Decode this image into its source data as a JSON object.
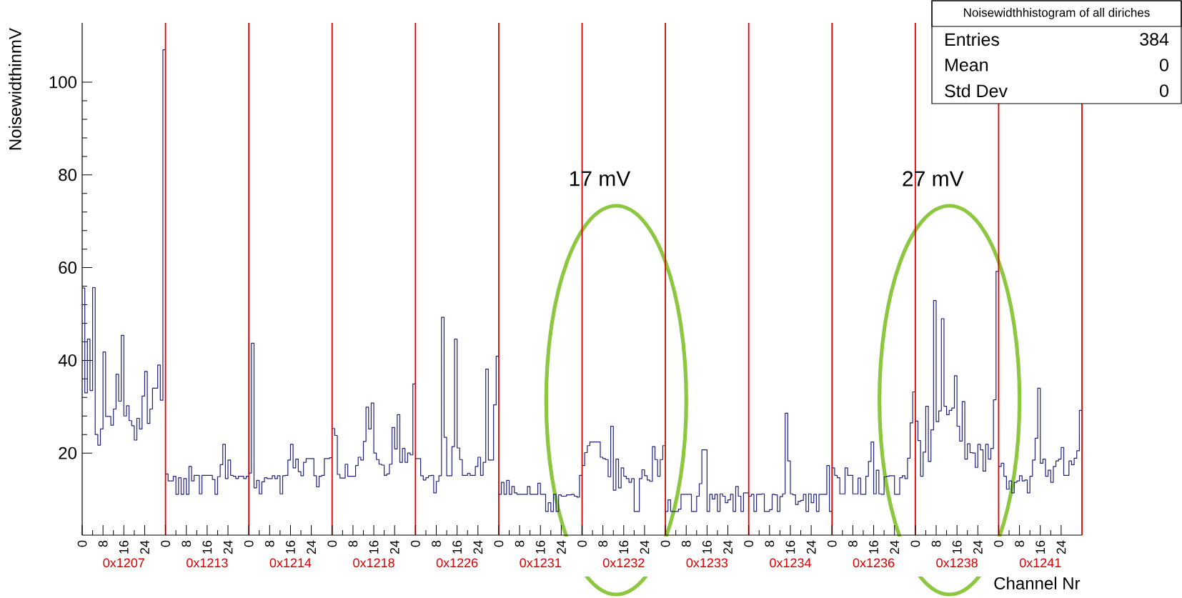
{
  "chart_data": [
    {
      "type": "histogram",
      "xlabel": "0x1207",
      "ylabel": "NoisewidthinmV",
      "color": "#202080",
      "bins": [
        0,
        1,
        2,
        3,
        4,
        5,
        6,
        7,
        8,
        9,
        10,
        11,
        12,
        13,
        14,
        15,
        16,
        17,
        18,
        19,
        20,
        21,
        22,
        23,
        24,
        25,
        26,
        27,
        28,
        29,
        30,
        31,
        32
      ],
      "values": [
        55.6,
        33,
        44.6,
        33.5,
        55.7,
        24,
        21.7,
        25.2,
        41.8,
        27.9,
        27.9,
        26,
        29.5,
        37,
        31.2,
        45.4,
        28,
        30.2,
        27,
        25.9,
        22.8,
        27.5,
        25.2,
        32.3,
        37.6,
        26.4,
        29.5,
        34,
        34,
        39,
        31.4,
        107
      ],
      "xlim": [
        0,
        32
      ],
      "xticks": [
        0,
        8,
        16,
        24
      ],
      "ylim": [
        2.3,
        112.8
      ],
      "yticks": [
        20,
        40,
        60,
        80,
        100
      ],
      "ref_lines": [
        {
          "axis": "x",
          "value": 32,
          "color": "#dd0000"
        }
      ]
    },
    {
      "type": "histogram",
      "xlabel": "0x1213",
      "color": "#202080",
      "bins": [
        0,
        1,
        2,
        3,
        4,
        5,
        6,
        7,
        8,
        9,
        10,
        11,
        12,
        13,
        14,
        15,
        16,
        17,
        18,
        19,
        20,
        21,
        22,
        23,
        24,
        25,
        26,
        27,
        28,
        29,
        30,
        31,
        32
      ],
      "values": [
        15.5,
        14,
        14,
        15,
        11.1,
        14.7,
        11.1,
        14.5,
        11.1,
        17.1,
        14,
        15.2,
        15.2,
        11.2,
        15.2,
        15.2,
        15.2,
        15.2,
        14.3,
        11.1,
        14.9,
        17.5,
        21.9,
        14.5,
        18.5,
        15.2,
        15,
        14.5,
        15,
        15,
        14.5,
        15
      ],
      "xlim": [
        0,
        32
      ],
      "xticks": [
        0,
        8,
        16,
        24
      ],
      "ylim": [
        2.3,
        112.8
      ],
      "tick_labels": "x",
      "ref_lines": [
        {
          "axis": "x",
          "value": 32,
          "color": "#dd0000"
        }
      ]
    },
    {
      "type": "histogram",
      "xlabel": "0x1214",
      "color": "#202080",
      "bins": [
        0,
        1,
        2,
        3,
        4,
        5,
        6,
        7,
        8,
        9,
        10,
        11,
        12,
        13,
        14,
        15,
        16,
        17,
        18,
        19,
        20,
        21,
        22,
        23,
        24,
        25,
        26,
        27,
        28,
        29,
        30,
        31,
        32
      ],
      "values": [
        15.7,
        43.7,
        12.5,
        14.1,
        11.2,
        13.8,
        14.7,
        14.5,
        14.5,
        15.1,
        14.5,
        15.1,
        11.2,
        15.1,
        15.2,
        18.5,
        21.9,
        16.8,
        18.7,
        16,
        15.1,
        18,
        18.8,
        18.8,
        18.8,
        15.1,
        12.7,
        15,
        15.2,
        18.8,
        18.8,
        19
      ],
      "xlim": [
        0,
        32
      ],
      "xticks": [
        0,
        8,
        16,
        24
      ],
      "ylim": [
        2.3,
        112.8
      ],
      "tick_labels": "x",
      "ref_lines": [
        {
          "axis": "x",
          "value": 32,
          "color": "#dd0000"
        }
      ]
    },
    {
      "type": "histogram",
      "xlabel": "0x1218",
      "color": "#202080",
      "bins": [
        0,
        1,
        2,
        3,
        4,
        5,
        6,
        7,
        8,
        9,
        10,
        11,
        12,
        13,
        14,
        15,
        16,
        17,
        18,
        19,
        20,
        21,
        22,
        23,
        24,
        25,
        26,
        27,
        28,
        29,
        30,
        31,
        32
      ],
      "values": [
        25.3,
        23.8,
        15.4,
        14.6,
        14.6,
        17.6,
        15,
        15,
        15,
        17.3,
        19.1,
        18.5,
        22.5,
        29.9,
        25.2,
        30.8,
        20,
        18.6,
        17.6,
        17.4,
        15.2,
        15.5,
        17.6,
        25.5,
        20.9,
        28.3,
        18,
        21,
        18,
        20,
        19.6,
        34.9
      ],
      "xlim": [
        0,
        32
      ],
      "xticks": [
        0,
        8,
        16,
        24
      ],
      "ylim": [
        2.3,
        112.8
      ],
      "tick_labels": "x",
      "ref_lines": [
        {
          "axis": "x",
          "value": 32,
          "color": "#dd0000"
        }
      ]
    },
    {
      "type": "histogram",
      "xlabel": "0x1226",
      "color": "#202080",
      "bins": [
        0,
        1,
        2,
        3,
        4,
        5,
        6,
        7,
        8,
        9,
        10,
        11,
        12,
        13,
        14,
        15,
        16,
        17,
        18,
        19,
        20,
        21,
        22,
        23,
        24,
        25,
        26,
        27,
        28,
        29,
        30,
        31,
        32
      ],
      "values": [
        18.8,
        18.8,
        15.1,
        14.2,
        14.7,
        15.1,
        15.2,
        11.4,
        13.9,
        15.1,
        49.3,
        23.4,
        15.1,
        15.1,
        21.4,
        44.6,
        21.1,
        18.6,
        15.2,
        15.2,
        15.6,
        15.2,
        15.2,
        17.1,
        19.1,
        15.2,
        18,
        38.1,
        18.5,
        18.5,
        30.4,
        40.9
      ],
      "xlim": [
        0,
        32
      ],
      "xticks": [
        0,
        8,
        16,
        24
      ],
      "ylim": [
        2.3,
        112.8
      ],
      "tick_labels": "x",
      "ref_lines": [
        {
          "axis": "x",
          "value": 32,
          "color": "#dd0000"
        }
      ]
    },
    {
      "type": "histogram",
      "xlabel": "0x1231",
      "color": "#202080",
      "bins": [
        0,
        1,
        2,
        3,
        4,
        5,
        6,
        7,
        8,
        9,
        10,
        11,
        12,
        13,
        14,
        15,
        16,
        17,
        18,
        19,
        20,
        21,
        22,
        23,
        24,
        25,
        26,
        27,
        28,
        29,
        30,
        31,
        32
      ],
      "values": [
        11.1,
        13.7,
        11.1,
        14.1,
        11.1,
        12.8,
        11.4,
        11.1,
        11.1,
        11.1,
        11.1,
        12.8,
        11.1,
        11.1,
        11.1,
        13.5,
        11.1,
        11.1,
        7.4,
        9.3,
        7.4,
        11.1,
        7.4,
        11,
        10.7,
        10.7,
        11,
        11,
        11.1,
        10.7,
        10.5,
        15.2
      ],
      "xlim": [
        0,
        32
      ],
      "xticks": [
        0,
        8,
        16,
        24
      ],
      "ylim": [
        2.3,
        112.8
      ],
      "tick_labels": "x",
      "ref_lines": [
        {
          "axis": "x",
          "value": 32,
          "color": "#dd0000"
        }
      ]
    },
    {
      "type": "histogram",
      "xlabel": "0x1232",
      "color": "#202080",
      "bins": [
        0,
        1,
        2,
        3,
        4,
        5,
        6,
        7,
        8,
        9,
        10,
        11,
        12,
        13,
        14,
        15,
        16,
        17,
        18,
        19,
        20,
        21,
        22,
        23,
        24,
        25,
        26,
        27,
        28,
        29,
        30,
        31,
        32
      ],
      "values": [
        17.3,
        20.1,
        21.6,
        22.4,
        22.4,
        22.4,
        22.4,
        19.1,
        18.8,
        18.6,
        14.9,
        25.8,
        12,
        18.7,
        12.5,
        16.8,
        15,
        14.5,
        13.7,
        14.5,
        7.4,
        7.4,
        14.5,
        16.4,
        15.1,
        14.2,
        13.9,
        21.4,
        18.6,
        15,
        18.6,
        21.6
      ],
      "xlim": [
        0,
        32
      ],
      "xticks": [
        0,
        8,
        16,
        24
      ],
      "ylim": [
        2.3,
        112.8
      ],
      "tick_labels": "x",
      "ref_lines": [
        {
          "axis": "x",
          "value": 32,
          "color": "#dd0000"
        }
      ],
      "annotations": [
        "17 mV"
      ]
    },
    {
      "type": "histogram",
      "xlabel": "0x1233",
      "color": "#202080",
      "bins": [
        0,
        1,
        2,
        3,
        4,
        5,
        6,
        7,
        8,
        9,
        10,
        11,
        12,
        13,
        14,
        15,
        16,
        17,
        18,
        19,
        20,
        21,
        22,
        23,
        24,
        25,
        26,
        27,
        28,
        29,
        30,
        31,
        32
      ],
      "values": [
        7.4,
        9.9,
        7.4,
        7.4,
        7.4,
        7.9,
        11.1,
        11.1,
        11.1,
        11.1,
        7.4,
        7.4,
        10.7,
        13.4,
        20.7,
        20.7,
        7.4,
        11.1,
        10.1,
        11.1,
        7.4,
        11.2,
        10.7,
        9.3,
        9.9,
        11.1,
        7.4,
        12.8,
        10.7,
        7.4,
        11.4,
        11.4
      ],
      "xlim": [
        0,
        32
      ],
      "xticks": [
        0,
        8,
        16,
        24
      ],
      "ylim": [
        2.3,
        112.8
      ],
      "tick_labels": "x",
      "ref_lines": [
        {
          "axis": "x",
          "value": 32,
          "color": "#dd0000"
        }
      ]
    },
    {
      "type": "histogram",
      "xlabel": "0x1234",
      "color": "#202080",
      "bins": [
        0,
        1,
        2,
        3,
        4,
        5,
        6,
        7,
        8,
        9,
        10,
        11,
        12,
        13,
        14,
        15,
        16,
        17,
        18,
        19,
        20,
        21,
        22,
        23,
        24,
        25,
        26,
        27,
        28,
        29,
        30,
        31,
        32
      ],
      "values": [
        10.7,
        11.1,
        7.4,
        11.1,
        11.1,
        11.2,
        7.4,
        7.4,
        7.8,
        11.1,
        11,
        7.4,
        10.6,
        11.2,
        28.6,
        18.3,
        11.2,
        11,
        8.9,
        9.6,
        9.8,
        11.1,
        7.4,
        11.2,
        9.3,
        11.1,
        7.4,
        11.1,
        11.1,
        11.1,
        17.3,
        7.4
      ],
      "xlim": [
        0,
        32
      ],
      "xticks": [
        0,
        8,
        16,
        24
      ],
      "ylim": [
        2.3,
        112.8
      ],
      "tick_labels": "x",
      "ref_lines": [
        {
          "axis": "x",
          "value": 32,
          "color": "#dd0000"
        }
      ]
    },
    {
      "type": "histogram",
      "xlabel": "0x1236",
      "color": "#202080",
      "bins": [
        0,
        1,
        2,
        3,
        4,
        5,
        6,
        7,
        8,
        9,
        10,
        11,
        12,
        13,
        14,
        15,
        16,
        17,
        18,
        19,
        20,
        21,
        22,
        23,
        24,
        25,
        26,
        27,
        28,
        29,
        30,
        31,
        32
      ],
      "values": [
        16.8,
        15.2,
        14.7,
        11.2,
        11.2,
        16.8,
        15.2,
        15.2,
        11.2,
        11.2,
        14.6,
        11.1,
        11.1,
        15,
        18.2,
        22.4,
        11.2,
        16.3,
        11.2,
        11.1,
        14.9,
        15,
        15.1,
        15.1,
        11.1,
        11.1,
        14.7,
        15.1,
        14.5,
        18.9,
        26.5,
        33.2
      ],
      "xlim": [
        0,
        32
      ],
      "xticks": [
        0,
        8,
        16,
        24
      ],
      "ylim": [
        2.3,
        112.8
      ],
      "tick_labels": "x",
      "ref_lines": [
        {
          "axis": "x",
          "value": 32,
          "color": "#dd0000"
        }
      ]
    },
    {
      "type": "histogram",
      "xlabel": "0x1238",
      "color": "#202080",
      "bins": [
        0,
        1,
        2,
        3,
        4,
        5,
        6,
        7,
        8,
        9,
        10,
        11,
        12,
        13,
        14,
        15,
        16,
        17,
        18,
        19,
        20,
        21,
        22,
        23,
        24,
        25,
        26,
        27,
        28,
        29,
        30,
        31,
        32
      ],
      "values": [
        26.9,
        22.7,
        15,
        20.2,
        30.1,
        18.2,
        25,
        52.9,
        26.8,
        29.1,
        49,
        30.1,
        28.3,
        29.2,
        29.7,
        36.7,
        25.8,
        22.6,
        31.1,
        18.7,
        22,
        20.1,
        20,
        16.9,
        21.9,
        20.7,
        16.1,
        21.9,
        18.7,
        21,
        31.5,
        59.2
      ],
      "xlim": [
        0,
        32
      ],
      "xticks": [
        0,
        8,
        16,
        24
      ],
      "ylim": [
        2.3,
        112.8
      ],
      "tick_labels": "x",
      "ref_lines": [
        {
          "axis": "x",
          "value": 32,
          "color": "#dd0000"
        }
      ],
      "annotations": [
        "27 mV"
      ]
    },
    {
      "type": "histogram",
      "xlabel": "0x1241",
      "color": "#202080",
      "bins": [
        0,
        1,
        2,
        3,
        4,
        5,
        6,
        7,
        8,
        9,
        10,
        11,
        12,
        13,
        14,
        15,
        16,
        17,
        18,
        19,
        20,
        21,
        22,
        23,
        24,
        25,
        26,
        27,
        28,
        29,
        30,
        31,
        32
      ],
      "values": [
        17.1,
        17.8,
        15,
        12.2,
        14,
        11.4,
        13.7,
        14,
        15.1,
        14,
        14.2,
        11.4,
        15,
        18.5,
        23.2,
        34,
        17.8,
        18.7,
        15,
        16.3,
        13.7,
        17.1,
        18.3,
        18.7,
        21.2,
        15.2,
        15.2,
        18.3,
        17.5,
        18.9,
        20.5,
        29.2
      ],
      "xlim": [
        0,
        32
      ],
      "xticks": [
        0,
        8,
        16,
        24
      ],
      "ylim": [
        2.3,
        112.8
      ],
      "tick_labels": "x",
      "ref_lines": [
        {
          "axis": "x",
          "value": 32,
          "color": "#dd0000"
        }
      ],
      "title": "Noisewidthhistogram of all diriches",
      "annotations": [
        "Channel Nr",
        "Entries",
        "384",
        "Mean",
        "0",
        "Std Dev",
        "0"
      ]
    }
  ]
}
